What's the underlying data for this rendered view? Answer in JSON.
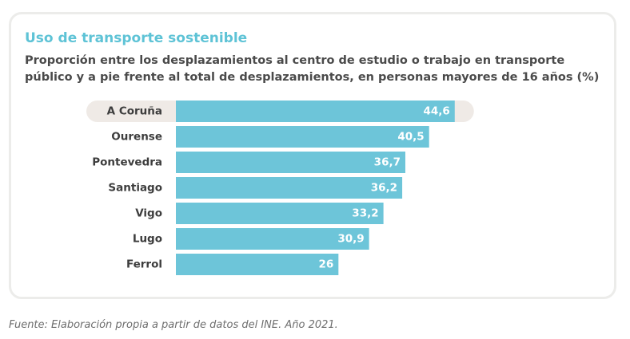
{
  "header": {
    "title": "Uso de transporte sostenible",
    "subtitle": "Proporción entre los desplazamientos al centro de estudio o trabajo en transporte público y a pie frente al total de desplazamientos, en personas mayores de 16 años (%)"
  },
  "footer": {
    "source": "Fuente: Elaboración propia a partir de datos del INE. Año 2021."
  },
  "colors": {
    "title": "#5ec3d6",
    "bar": "#6dc5d9",
    "highlight_band": "#efeae6",
    "label_text": "#3d3d3d",
    "value_text": "#ffffff"
  },
  "chart_data": {
    "type": "bar",
    "orientation": "horizontal",
    "title": "Uso de transporte sostenible",
    "subtitle": "Proporción entre los desplazamientos al centro de estudio o trabajo en transporte público y a pie frente al total de desplazamientos, en personas mayores de 16 años (%)",
    "categories": [
      "A Coruña",
      "Ourense",
      "Pontevedra",
      "Santiago",
      "Vigo",
      "Lugo",
      "Ferrol"
    ],
    "values": [
      44.6,
      40.5,
      36.7,
      36.2,
      33.2,
      30.9,
      26
    ],
    "value_labels": [
      "44,6",
      "40,5",
      "36,7",
      "36,2",
      "33,2",
      "30,9",
      "26"
    ],
    "highlighted_category": "A Coruña",
    "xlim": [
      0,
      50
    ],
    "grid": false,
    "legend": "none",
    "xlabel": "",
    "ylabel": ""
  }
}
